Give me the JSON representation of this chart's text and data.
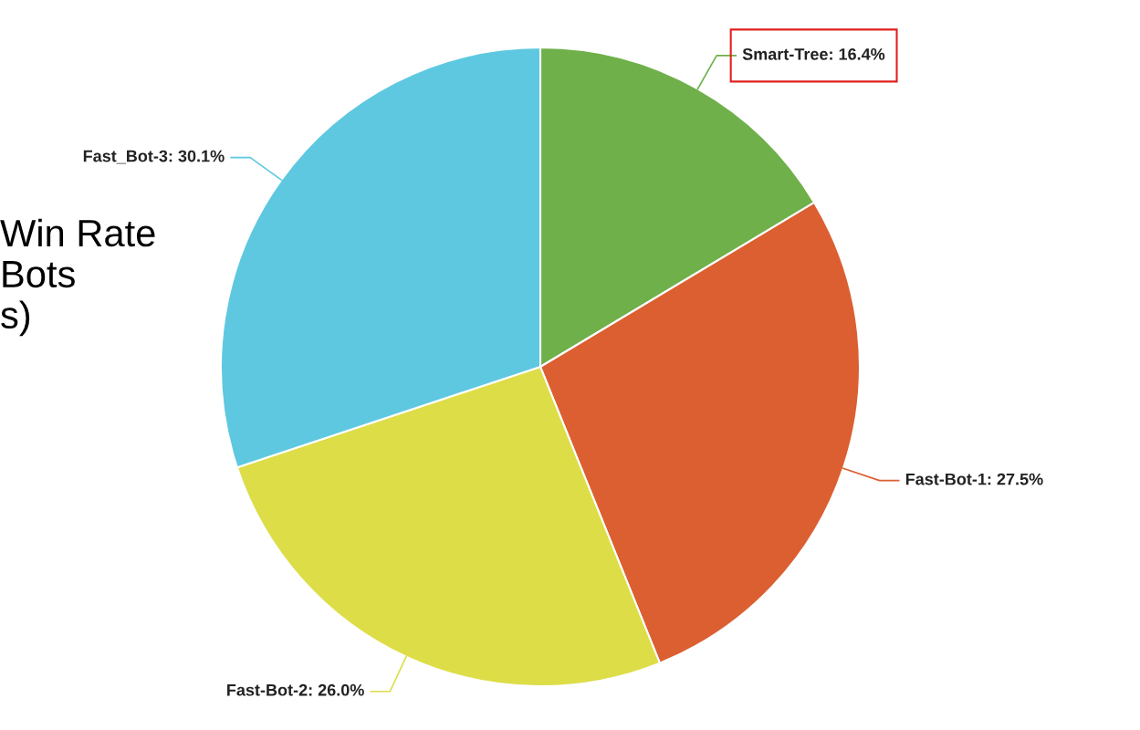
{
  "chart_data": {
    "type": "pie",
    "title": "Win Rate\nBots\ns)",
    "categories": [
      "Smart-Tree",
      "Fast-Bot-1",
      "Fast-Bot-2",
      "Fast_Bot-3"
    ],
    "values": [
      16.4,
      27.5,
      26.0,
      30.1
    ],
    "value_labels": [
      "16.4%",
      "27.5%",
      "26.0%",
      "30.1%"
    ],
    "colors": [
      "#6fb04a",
      "#dc5f31",
      "#dddd48",
      "#5ec8e0"
    ]
  }
}
